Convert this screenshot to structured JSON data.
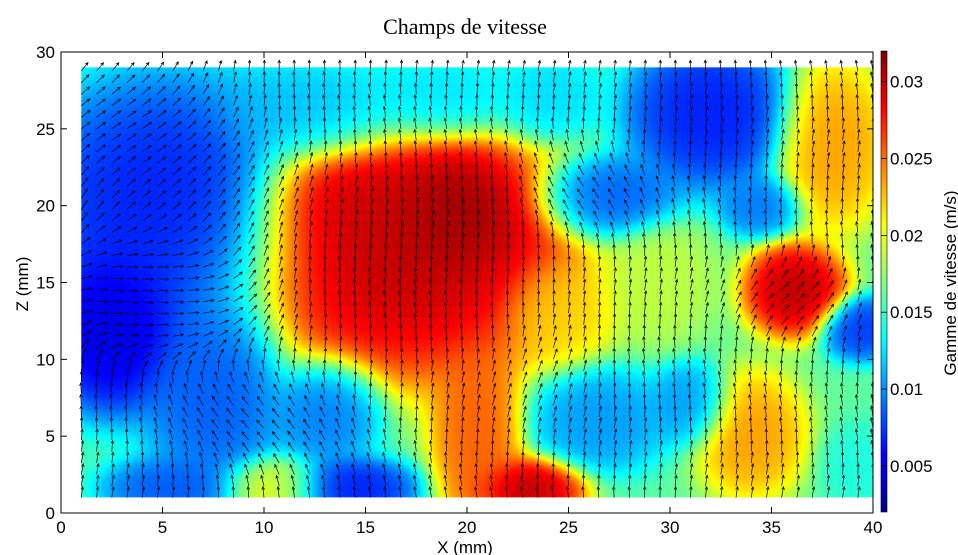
{
  "chart_data": {
    "type": "heatmap",
    "title": "Champs de vitesse",
    "xlabel": "X (mm)",
    "ylabel": "Z (mm)",
    "xlim": [
      0,
      40
    ],
    "ylim": [
      0,
      30
    ],
    "data_extent": {
      "x": [
        1,
        40
      ],
      "z": [
        1,
        29
      ]
    },
    "x_ticks": [
      0,
      5,
      10,
      15,
      20,
      25,
      30,
      35,
      40
    ],
    "x_tick_labels": [
      "0",
      "5",
      "10",
      "15",
      "20",
      "25",
      "30",
      "35",
      "40"
    ],
    "y_ticks": [
      0,
      5,
      10,
      15,
      20,
      25,
      30
    ],
    "y_tick_labels": [
      "0",
      "5",
      "10",
      "15",
      "20",
      "25",
      "30"
    ],
    "colorbar": {
      "label": "Gamme de vitesse (m/s)",
      "range": [
        0.002,
        0.032
      ],
      "ticks": [
        0.005,
        0.01,
        0.015,
        0.02,
        0.025,
        0.03
      ],
      "tick_labels": [
        "0.005",
        "0.01",
        "0.015",
        "0.02",
        "0.025",
        "0.03"
      ],
      "colormap": "jet"
    },
    "background_speed": 0.016,
    "speed_regions": [
      {
        "x": 17,
        "z": 17,
        "rx": 6,
        "rz": 6,
        "value": 0.031
      },
      {
        "x": 19.5,
        "z": 19.5,
        "rx": 2.5,
        "rz": 3,
        "value": 0.032
      },
      {
        "x": 14.5,
        "z": 20,
        "rx": 3,
        "rz": 3,
        "value": 0.03
      },
      {
        "x": 20.5,
        "z": 5,
        "rx": 1.6,
        "rz": 4.5,
        "value": 0.026
      },
      {
        "x": 23,
        "z": 1.5,
        "rx": 2,
        "rz": 1.5,
        "value": 0.031
      },
      {
        "x": 36.2,
        "z": 14.5,
        "rx": 1.8,
        "rz": 2.2,
        "value": 0.031
      },
      {
        "x": 38,
        "z": 24,
        "rx": 2,
        "rz": 4,
        "value": 0.024
      },
      {
        "x": 34,
        "z": 5,
        "rx": 2,
        "rz": 3,
        "value": 0.024
      },
      {
        "x": 24.5,
        "z": 13,
        "rx": 2,
        "rz": 2.5,
        "value": 0.022
      },
      {
        "x": 10.5,
        "z": 1.5,
        "rx": 2,
        "rz": 1.5,
        "value": 0.021
      },
      {
        "x": 5,
        "z": 20,
        "rx": 5,
        "rz": 6,
        "value": 0.006
      },
      {
        "x": 2.5,
        "z": 12,
        "rx": 2.5,
        "rz": 4,
        "value": 0.004
      },
      {
        "x": 7.5,
        "z": 8,
        "rx": 2.5,
        "rz": 5,
        "value": 0.008
      },
      {
        "x": 5.5,
        "z": 1.5,
        "rx": 2.5,
        "rz": 1.5,
        "value": 0.008
      },
      {
        "x": 14,
        "z": 1.5,
        "rx": 2.5,
        "rz": 1.5,
        "value": 0.006
      },
      {
        "x": 13,
        "z": 6.5,
        "rx": 2,
        "rz": 2.5,
        "value": 0.009
      },
      {
        "x": 32,
        "z": 26,
        "rx": 3,
        "rz": 3.5,
        "value": 0.006
      },
      {
        "x": 27,
        "z": 20.5,
        "rx": 2.5,
        "rz": 2,
        "value": 0.008
      },
      {
        "x": 34.5,
        "z": 20,
        "rx": 1.5,
        "rz": 1.5,
        "value": 0.009
      },
      {
        "x": 39.5,
        "z": 12,
        "rx": 1.5,
        "rz": 1.5,
        "value": 0.007
      },
      {
        "x": 26.5,
        "z": 6,
        "rx": 2.5,
        "rz": 2.5,
        "value": 0.01
      },
      {
        "x": 31,
        "z": 7,
        "rx": 1.5,
        "rz": 2,
        "value": 0.01
      },
      {
        "x": 12.5,
        "z": 26,
        "rx": 3.5,
        "rz": 2.5,
        "value": 0.011
      },
      {
        "x": 24,
        "z": 27,
        "rx": 2,
        "rz": 2,
        "value": 0.012
      },
      {
        "x": 18.5,
        "z": 27,
        "rx": 3,
        "rz": 2,
        "value": 0.012
      },
      {
        "x": 39.5,
        "z": 3,
        "rx": 1.5,
        "rz": 2,
        "value": 0.014
      },
      {
        "x": 29.5,
        "z": 15,
        "rx": 2,
        "rz": 3,
        "value": 0.019
      }
    ],
    "vectors": {
      "grid_x": {
        "from": 1,
        "to": 40,
        "step": 0.75
      },
      "grid_z": {
        "from": 1,
        "to": 29,
        "step": 0.75
      },
      "color": "#000000"
    }
  }
}
